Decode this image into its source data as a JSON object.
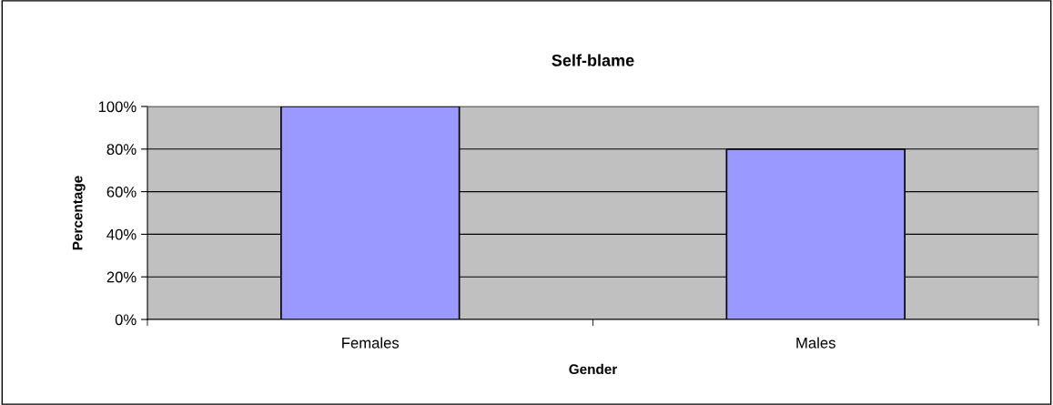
{
  "chart_data": {
    "type": "bar",
    "title": "Self-blame",
    "xlabel": "Gender",
    "ylabel": "Percentage",
    "categories": [
      "Females",
      "Males"
    ],
    "values": [
      100,
      80
    ],
    "color": "#9999ff",
    "ylim": [
      0,
      100
    ],
    "yticks": [
      {
        "value": 0,
        "label": "0%"
      },
      {
        "value": 20,
        "label": "20%"
      },
      {
        "value": 40,
        "label": "40%"
      },
      {
        "value": 60,
        "label": "60%"
      },
      {
        "value": 80,
        "label": "80%"
      },
      {
        "value": 100,
        "label": "100%"
      }
    ],
    "grid": "y"
  }
}
